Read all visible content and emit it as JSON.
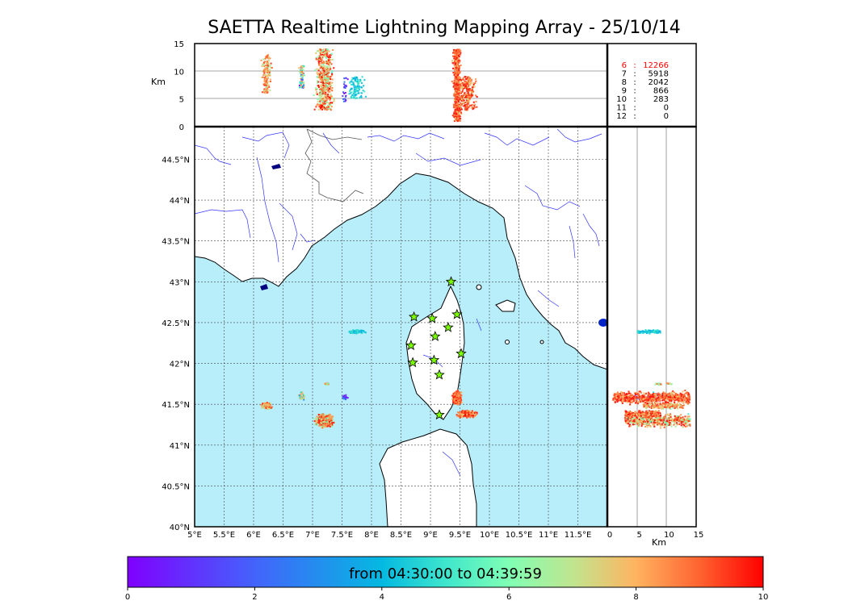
{
  "title": "SAETTA Realtime Lightning Mapping Array - 25/10/14",
  "altitude_axis": {
    "label": "Km",
    "ticks": [
      "15",
      "10",
      "5",
      "0"
    ]
  },
  "bottom_km_label": "Km",
  "side_km_ticks": [
    "0",
    "5",
    "10",
    "15"
  ],
  "lat_ticks": [
    "44.5°N",
    "44°N",
    "43.5°N",
    "43°N",
    "42.5°N",
    "42°N",
    "41.5°N",
    "41°N",
    "40.5°N",
    "40°N"
  ],
  "lon_ticks": [
    "5°E",
    "5.5°E",
    "6°E",
    "6.5°E",
    "7°E",
    "7.5°E",
    "8°E",
    "8.5°E",
    "9°E",
    "9.5°E",
    "10°E",
    "10.5°E",
    "11°E",
    "11.5°E"
  ],
  "station_counts": [
    {
      "stations": "6",
      "sep": ":",
      "count": "12266",
      "color": "#ff0000"
    },
    {
      "stations": "7",
      "sep": ":",
      "count": "5918",
      "color": "#000000"
    },
    {
      "stations": "8",
      "sep": ":",
      "count": "2042",
      "color": "#000000"
    },
    {
      "stations": "9",
      "sep": ":",
      "count": "866",
      "color": "#000000"
    },
    {
      "stations": "10",
      "sep": ":",
      "count": "283",
      "color": "#000000"
    },
    {
      "stations": "11",
      "sep": ":",
      "count": "0",
      "color": "#000000"
    },
    {
      "stations": "12",
      "sep": ":",
      "count": "0",
      "color": "#000000"
    }
  ],
  "colorbar": {
    "label": "from 04:30:00 to 04:39:59",
    "ticks": [
      "0",
      "2",
      "4",
      "6",
      "8",
      "10"
    ],
    "range": [
      0,
      10
    ]
  },
  "colors": {
    "sea": "#b8eefa",
    "land": "#ffffff",
    "rivers": "#3333ff",
    "station_star": "#7cfc00"
  },
  "stations": [
    {
      "lon": 9.35,
      "lat": 43.0
    },
    {
      "lon": 8.72,
      "lat": 42.57
    },
    {
      "lon": 9.03,
      "lat": 42.55
    },
    {
      "lon": 9.45,
      "lat": 42.6
    },
    {
      "lon": 9.3,
      "lat": 42.44
    },
    {
      "lon": 9.08,
      "lat": 42.33
    },
    {
      "lon": 8.67,
      "lat": 42.22
    },
    {
      "lon": 9.52,
      "lat": 42.12
    },
    {
      "lon": 9.06,
      "lat": 42.04
    },
    {
      "lon": 8.7,
      "lat": 42.01
    },
    {
      "lon": 9.15,
      "lat": 41.86
    },
    {
      "lon": 9.15,
      "lat": 41.37
    }
  ],
  "clusters": [
    {
      "lon": 6.22,
      "lat": 41.48,
      "dlon": 0.1,
      "dlat": 0.05,
      "zmin": 6,
      "zmax": 13,
      "tmin": 6.0,
      "tmax": 9.5,
      "n": 140
    },
    {
      "lon": 6.82,
      "lat": 41.6,
      "dlon": 0.06,
      "dlat": 0.06,
      "zmin": 7,
      "zmax": 11,
      "tmin": 0.5,
      "tmax": 9.0,
      "n": 90
    },
    {
      "lon": 7.2,
      "lat": 41.3,
      "dlon": 0.2,
      "dlat": 0.1,
      "zmin": 3,
      "zmax": 14,
      "tmin": 5.0,
      "tmax": 10.0,
      "n": 500
    },
    {
      "lon": 7.25,
      "lat": 41.75,
      "dlon": 0.05,
      "dlat": 0.02,
      "zmin": 8,
      "zmax": 11,
      "tmin": 5.0,
      "tmax": 9.0,
      "n": 20
    },
    {
      "lon": 7.55,
      "lat": 41.58,
      "dlon": 0.07,
      "dlat": 0.04,
      "zmin": 4,
      "zmax": 9,
      "tmin": 0.0,
      "tmax": 3.0,
      "n": 25
    },
    {
      "lon": 7.75,
      "lat": 42.39,
      "dlon": 0.18,
      "dlat": 0.03,
      "zmin": 5,
      "zmax": 9,
      "tmin": 3.5,
      "tmax": 5.2,
      "n": 110
    },
    {
      "lon": 9.45,
      "lat": 41.58,
      "dlon": 0.09,
      "dlat": 0.1,
      "zmin": 1,
      "zmax": 14,
      "tmin": 7.5,
      "tmax": 10.0,
      "n": 600
    },
    {
      "lon": 9.62,
      "lat": 41.38,
      "dlon": 0.2,
      "dlat": 0.06,
      "zmin": 3,
      "zmax": 9,
      "tmin": 7.0,
      "tmax": 10.0,
      "n": 250
    }
  ]
}
